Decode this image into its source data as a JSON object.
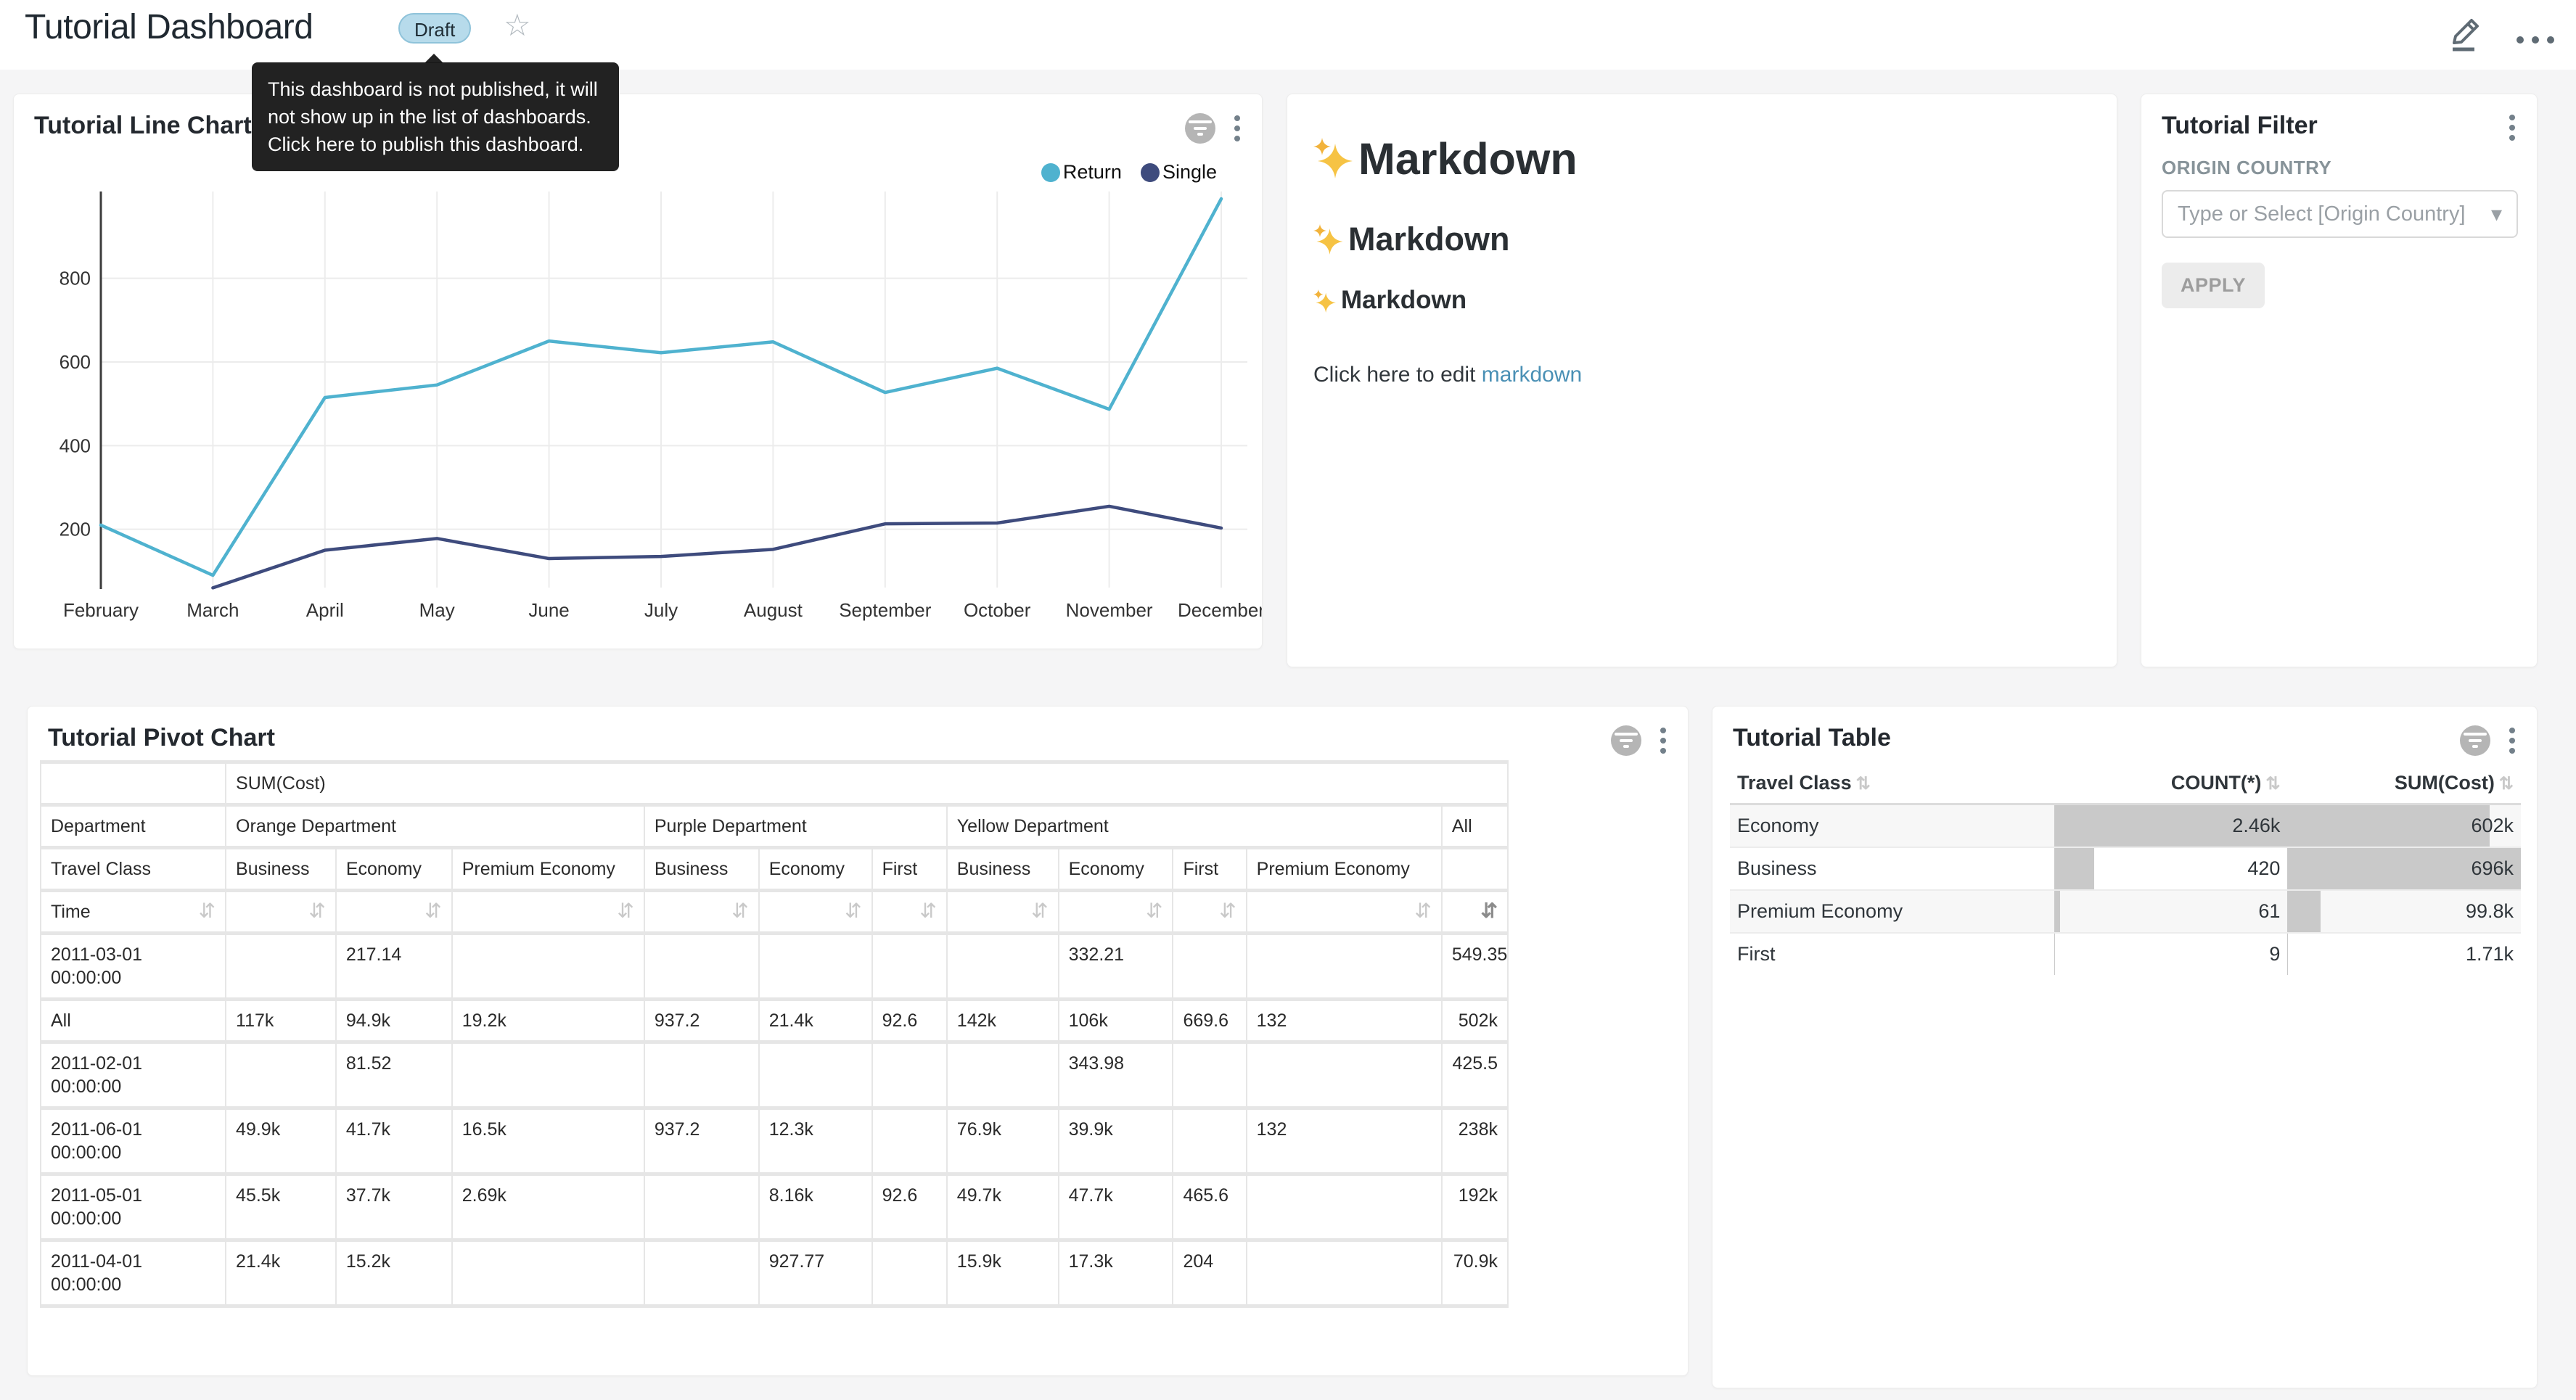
{
  "header": {
    "title": "Tutorial Dashboard",
    "draft_label": "Draft",
    "tooltip": "This dashboard is not published, it will not show up in the list of dashboards. Click here to publish this dashboard."
  },
  "icons": {
    "star": "☆",
    "dropdown_caret": "▾",
    "sort_inactive": "⇵",
    "sort_active": "⇵",
    "sort_both": "⇅"
  },
  "colors": {
    "draft_bg": "#b7dbeb",
    "return_line": "#4fb2cf",
    "single_line": "#3e4b7d",
    "bar_gray": "#c9c9c9",
    "link": "#4a90b5"
  },
  "line_chart": {
    "title": "Tutorial Line Chart"
  },
  "chart_data": {
    "type": "line",
    "title": "Tutorial Line Chart",
    "categories": [
      "February",
      "March",
      "April",
      "May",
      "June",
      "July",
      "August",
      "September",
      "October",
      "November",
      "December"
    ],
    "series": [
      {
        "name": "Return",
        "color": "#4fb2cf",
        "values": [
          210,
          90,
          515,
          545,
          650,
          622,
          648,
          527,
          585,
          487,
          990
        ]
      },
      {
        "name": "Single",
        "color": "#3e4b7d",
        "values": [
          null,
          60,
          150,
          178,
          130,
          135,
          152,
          213,
          215,
          255,
          203
        ]
      }
    ],
    "xlabel": "",
    "ylabel": "",
    "ylim": [
      0,
      1000
    ],
    "yticks": [
      200,
      400,
      600,
      800
    ],
    "grid": true,
    "legend_position": "top-right"
  },
  "markdown": {
    "h1": "Markdown",
    "h2": "Markdown",
    "h3": "Markdown",
    "paragraph_prefix": "Click here to edit ",
    "link_text": "markdown"
  },
  "filter_panel": {
    "title": "Tutorial Filter",
    "field_label": "ORIGIN COUNTRY",
    "select_placeholder": "Type or Select [Origin Country]",
    "apply_label": "APPLY"
  },
  "pivot": {
    "title": "Tutorial Pivot Chart",
    "metric_label": "SUM(Cost)",
    "department_label": "Department",
    "travel_class_label": "Travel Class",
    "time_label": "Time",
    "all_label": "All",
    "groups": [
      {
        "label": "Orange Department",
        "classes": [
          "Business",
          "Economy",
          "Premium Economy"
        ]
      },
      {
        "label": "Purple Department",
        "classes": [
          "Business",
          "Economy",
          "First"
        ]
      },
      {
        "label": "Yellow Department",
        "classes": [
          "Business",
          "Economy",
          "First",
          "Premium Economy"
        ]
      }
    ],
    "rows": [
      {
        "time": "2011-03-01 00:00:00",
        "values": [
          "",
          "217.14",
          "",
          "",
          "",
          "",
          "",
          "332.21",
          "",
          "",
          "549.35"
        ]
      },
      {
        "time": "All",
        "values": [
          "117k",
          "94.9k",
          "19.2k",
          "937.2",
          "21.4k",
          "92.6",
          "142k",
          "106k",
          "669.6",
          "132",
          "502k"
        ]
      },
      {
        "time": "2011-02-01 00:00:00",
        "values": [
          "",
          "81.52",
          "",
          "",
          "",
          "",
          "",
          "343.98",
          "",
          "",
          "425.5"
        ]
      },
      {
        "time": "2011-06-01 00:00:00",
        "values": [
          "49.9k",
          "41.7k",
          "16.5k",
          "937.2",
          "12.3k",
          "",
          "76.9k",
          "39.9k",
          "",
          "132",
          "238k"
        ]
      },
      {
        "time": "2011-05-01 00:00:00",
        "values": [
          "45.5k",
          "37.7k",
          "2.69k",
          "",
          "8.16k",
          "92.6",
          "49.7k",
          "47.7k",
          "465.6",
          "",
          "192k"
        ]
      },
      {
        "time": "2011-04-01 00:00:00",
        "values": [
          "21.4k",
          "15.2k",
          "",
          "",
          "927.77",
          "",
          "15.9k",
          "17.3k",
          "204",
          "",
          "70.9k"
        ]
      }
    ]
  },
  "table": {
    "title": "Tutorial Table",
    "columns": [
      "Travel Class",
      "COUNT(*)",
      "SUM(Cost)"
    ],
    "rows": [
      {
        "travel_class": "Economy",
        "count": "2.46k",
        "count_num": 2460,
        "sum": "602k",
        "sum_num": 602000
      },
      {
        "travel_class": "Business",
        "count": "420",
        "count_num": 420,
        "sum": "696k",
        "sum_num": 696000
      },
      {
        "travel_class": "Premium Economy",
        "count": "61",
        "count_num": 61,
        "sum": "99.8k",
        "sum_num": 99800
      },
      {
        "travel_class": "First",
        "count": "9",
        "count_num": 9,
        "sum": "1.71k",
        "sum_num": 1710
      }
    ]
  }
}
